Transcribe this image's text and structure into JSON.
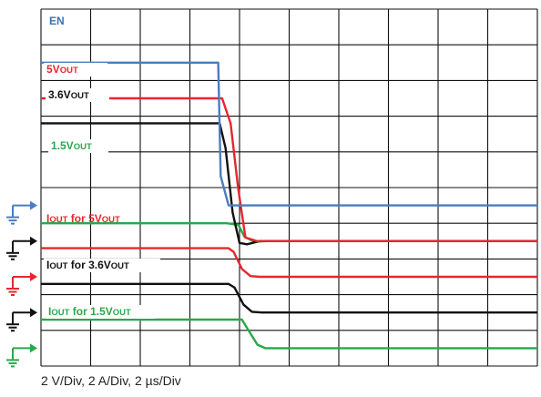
{
  "chart_data": {
    "type": "line",
    "x_div": 10,
    "x_start_div": 0,
    "series": [
      {
        "key": "en",
        "name": "EN",
        "color": "#4a7cc0",
        "ground_y": 4.5,
        "points": [
          [
            0,
            8.5
          ],
          [
            3.57,
            8.5
          ],
          [
            3.62,
            5.32
          ],
          [
            3.78,
            4.5
          ],
          [
            10.0,
            4.5
          ]
        ]
      },
      {
        "key": "v5",
        "color": "#e8262d",
        "ground_y": 3.5,
        "points": [
          [
            0,
            7.5
          ],
          [
            3.65,
            7.5
          ],
          [
            3.82,
            6.8
          ],
          [
            3.97,
            5.0
          ],
          [
            4.12,
            3.6
          ],
          [
            4.35,
            3.5
          ],
          [
            10.0,
            3.5
          ]
        ]
      },
      {
        "key": "v36",
        "color": "#111111",
        "ground_y": 3.5,
        "points": [
          [
            0,
            6.8
          ],
          [
            3.6,
            6.8
          ],
          [
            3.72,
            6.1
          ],
          [
            3.86,
            4.3
          ],
          [
            4.0,
            3.45
          ],
          [
            4.15,
            3.41
          ],
          [
            4.4,
            3.5
          ],
          [
            10.0,
            3.5
          ]
        ]
      },
      {
        "key": "v15",
        "color": "#2aa84a",
        "ground_y": 3.5,
        "points": [
          [
            0,
            4.0
          ],
          [
            3.75,
            4.0
          ],
          [
            3.98,
            3.95
          ],
          [
            4.1,
            3.62
          ],
          [
            4.3,
            3.48
          ],
          [
            4.55,
            3.5
          ],
          [
            10.0,
            3.5
          ]
        ]
      },
      {
        "key": "i5",
        "color": "#e8262d",
        "ground_y": 2.5,
        "points": [
          [
            0,
            3.3
          ],
          [
            3.78,
            3.3
          ],
          [
            3.88,
            3.2
          ],
          [
            4.05,
            2.72
          ],
          [
            4.22,
            2.52
          ],
          [
            4.4,
            2.5
          ],
          [
            10.0,
            2.5
          ]
        ]
      },
      {
        "key": "i36",
        "color": "#111111",
        "ground_y": 1.5,
        "points": [
          [
            0,
            2.3
          ],
          [
            3.78,
            2.3
          ],
          [
            3.9,
            2.2
          ],
          [
            4.08,
            1.72
          ],
          [
            4.25,
            1.52
          ],
          [
            4.45,
            1.5
          ],
          [
            10.0,
            1.5
          ]
        ]
      },
      {
        "key": "i15",
        "color": "#2aa84a",
        "ground_y": 0.5,
        "points": [
          [
            0,
            1.3
          ],
          [
            4.05,
            1.3
          ],
          [
            4.18,
            1.0
          ],
          [
            4.36,
            0.6
          ],
          [
            4.52,
            0.5
          ],
          [
            10.0,
            0.5
          ]
        ]
      }
    ],
    "labels": [
      {
        "key": "en",
        "main": "EN",
        "sub": "",
        "tail": "",
        "color": "#3a72b8"
      },
      {
        "key": "v5",
        "main": "5V",
        "sub": "OUT",
        "tail": "",
        "color": "#e8262d"
      },
      {
        "key": "v36",
        "main": "3.6V",
        "sub": "OUT",
        "tail": "",
        "color": "#111111"
      },
      {
        "key": "v15",
        "main": "1.5V",
        "sub": "OUT",
        "tail": "",
        "color": "#2aa84a"
      },
      {
        "key": "i5",
        "main": "I",
        "sub": "OUT",
        "tail": " for 5V",
        "sub2": "OUT",
        "color": "#e8262d"
      },
      {
        "key": "i36",
        "main": "I",
        "sub": "OUT",
        "tail": " for 3.6V",
        "sub2": "OUT",
        "color": "#111111"
      },
      {
        "key": "i15",
        "main": "I",
        "sub": "OUT",
        "tail": " for 1.5V",
        "sub2": "OUT",
        "color": "#2aa84a"
      }
    ],
    "ground_markers": [
      {
        "key": "en",
        "color": "#4a7cc0",
        "y": 4.5
      },
      {
        "key": "v",
        "color": "#111111",
        "y": 3.5
      },
      {
        "key": "i5",
        "color": "#e8262d",
        "y": 2.5
      },
      {
        "key": "i36",
        "color": "#111111",
        "y": 1.5
      },
      {
        "key": "i15",
        "color": "#2aa84a",
        "y": 0.5
      }
    ],
    "grid": true,
    "footer": "2 V/Div, 2 A/Div, 2 µs/Div"
  }
}
